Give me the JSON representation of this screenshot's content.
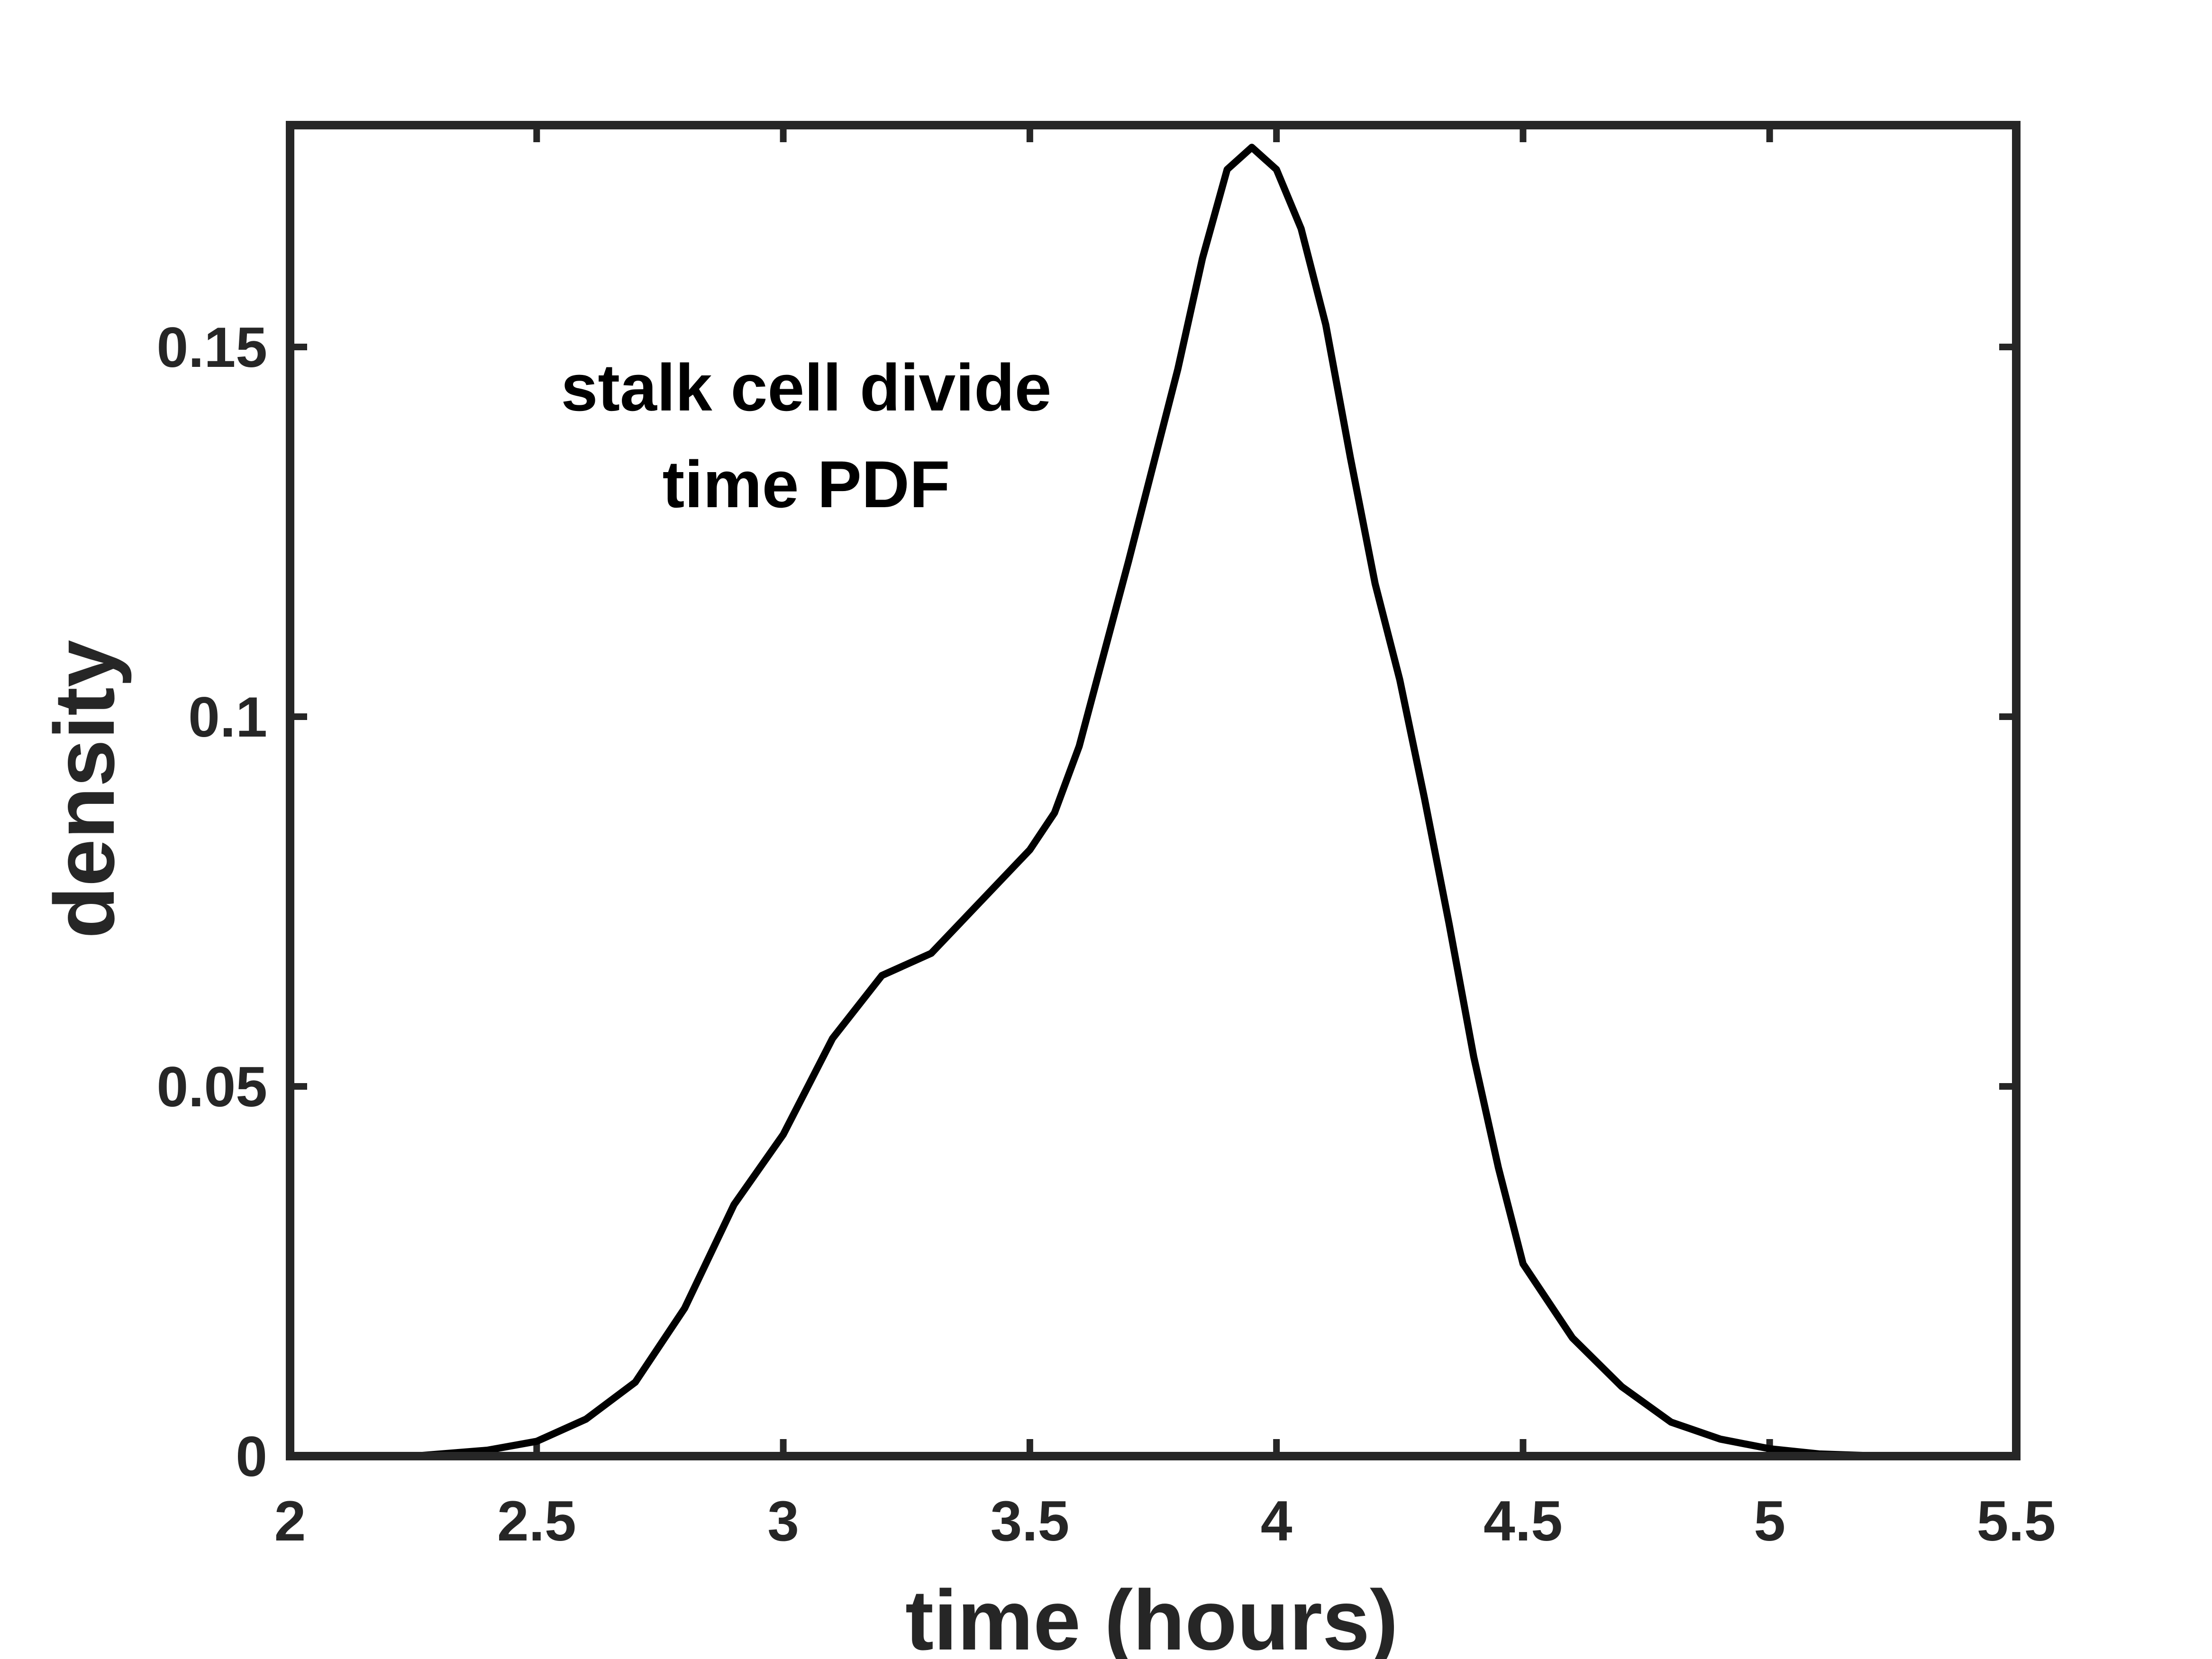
{
  "chart_data": {
    "type": "line",
    "xlabel": "time (hours)",
    "ylabel": "density",
    "annotation": [
      "stalk cell divide",
      "time PDF"
    ],
    "xlim": [
      2,
      5.5
    ],
    "xticks": [
      2,
      2.5,
      3,
      3.5,
      4,
      4.5,
      5,
      5.5
    ],
    "ylim": [
      0,
      0.18
    ],
    "yticks": [
      0,
      0.05,
      0.1,
      0.15
    ],
    "grid": false,
    "series": [
      {
        "name": "stalk cell divide time PDF",
        "color": "#000000",
        "x": [
          2.25,
          2.4,
          2.5,
          2.6,
          2.7,
          2.8,
          2.9,
          3.0,
          3.1,
          3.2,
          3.3,
          3.4,
          3.5,
          3.55,
          3.6,
          3.7,
          3.8,
          3.85,
          3.9,
          3.95,
          4.0,
          4.05,
          4.1,
          4.15,
          4.2,
          4.25,
          4.3,
          4.35,
          4.4,
          4.45,
          4.5,
          4.6,
          4.7,
          4.8,
          4.9,
          5.0,
          5.1,
          5.23
        ],
        "values": [
          0,
          0.0008,
          0.002,
          0.005,
          0.01,
          0.02,
          0.034,
          0.0435,
          0.0565,
          0.065,
          0.068,
          0.075,
          0.082,
          0.087,
          0.096,
          0.121,
          0.147,
          0.162,
          0.174,
          0.177,
          0.174,
          0.166,
          0.153,
          0.135,
          0.118,
          0.105,
          0.089,
          0.072,
          0.054,
          0.039,
          0.026,
          0.016,
          0.0094,
          0.0046,
          0.0023,
          0.001,
          0.0003,
          0
        ]
      }
    ]
  }
}
